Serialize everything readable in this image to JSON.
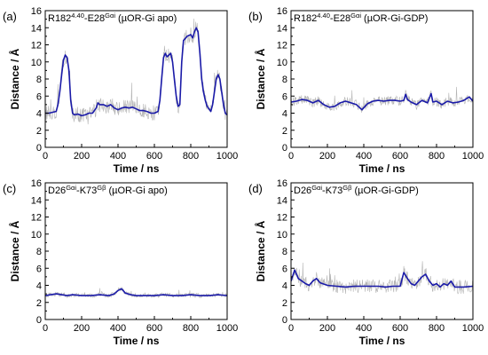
{
  "chart_data": [
    {
      "panel_label": "(a)",
      "title": {
        "res1": "R182",
        "res1_sup": "4.40",
        "mid": "-E28",
        "res2_sup": "Gαi",
        "tail": " (µOR-Gi apo)"
      },
      "type": "line",
      "xlabel": "Time / ns",
      "ylabel": "Distance / Å",
      "xlim": [
        0,
        1000
      ],
      "ylim": [
        0,
        16
      ],
      "xticks": [
        0,
        200,
        400,
        600,
        800,
        1000
      ],
      "yticks": [
        0,
        2,
        4,
        6,
        8,
        10,
        12,
        14,
        16
      ],
      "series": [
        {
          "style": "smoothed",
          "color": "#1a1aa8",
          "x": [
            0,
            20,
            40,
            60,
            70,
            80,
            90,
            100,
            110,
            120,
            130,
            140,
            150,
            160,
            180,
            200,
            220,
            240,
            260,
            280,
            290,
            300,
            320,
            340,
            360,
            380,
            400,
            420,
            440,
            460,
            480,
            500,
            520,
            540,
            560,
            580,
            600,
            620,
            630,
            640,
            650,
            660,
            670,
            680,
            690,
            700,
            710,
            720,
            730,
            740,
            750,
            760,
            780,
            800,
            810,
            820,
            830,
            840,
            850,
            860,
            870,
            880,
            890,
            900,
            910,
            920,
            930,
            940,
            950,
            960,
            970,
            980,
            990,
            1000
          ],
          "y": [
            4.0,
            4.0,
            4.1,
            4.2,
            5.0,
            6.5,
            8.5,
            10.2,
            10.8,
            10.5,
            9.0,
            5.5,
            4.0,
            3.8,
            3.9,
            3.7,
            3.8,
            4.0,
            4.0,
            4.6,
            5.2,
            5.0,
            5.0,
            4.8,
            5.0,
            4.6,
            4.4,
            4.6,
            4.7,
            4.6,
            4.7,
            4.5,
            4.3,
            4.3,
            4.2,
            4.0,
            4.0,
            4.2,
            5.5,
            8.0,
            10.5,
            11.0,
            10.6,
            10.8,
            11.0,
            10.0,
            8.0,
            6.0,
            4.8,
            5.0,
            10.0,
            12.5,
            13.0,
            13.2,
            12.8,
            13.5,
            14.0,
            13.5,
            11.0,
            8.0,
            6.5,
            5.5,
            4.8,
            4.5,
            4.2,
            5.0,
            6.5,
            8.0,
            8.5,
            8.0,
            6.5,
            5.0,
            4.0,
            3.8
          ]
        }
      ]
    },
    {
      "panel_label": "(b)",
      "title": {
        "res1": "R182",
        "res1_sup": "4.40",
        "mid": "-E28",
        "res2_sup": "Gαi",
        "tail": " (µOR-Gi-GDP)"
      },
      "type": "line",
      "xlabel": "Time / ns",
      "ylabel": "Distance / Å",
      "xlim": [
        0,
        1000
      ],
      "ylim": [
        0,
        16
      ],
      "xticks": [
        0,
        200,
        400,
        600,
        800,
        1000
      ],
      "yticks": [
        0,
        2,
        4,
        6,
        8,
        10,
        12,
        14,
        16
      ],
      "series": [
        {
          "style": "smoothed",
          "color": "#1a1aa8",
          "x": [
            0,
            30,
            60,
            90,
            120,
            150,
            180,
            210,
            240,
            270,
            300,
            330,
            360,
            390,
            420,
            450,
            480,
            510,
            540,
            570,
            600,
            620,
            630,
            640,
            660,
            690,
            720,
            750,
            770,
            780,
            800,
            830,
            860,
            890,
            920,
            950,
            980,
            1000
          ],
          "y": [
            5.3,
            5.4,
            5.6,
            5.5,
            5.2,
            5.5,
            5.0,
            4.7,
            4.8,
            5.2,
            5.4,
            5.2,
            5.0,
            4.4,
            5.1,
            5.4,
            5.5,
            5.4,
            5.5,
            5.5,
            5.4,
            5.5,
            6.2,
            5.6,
            5.3,
            5.0,
            5.5,
            5.2,
            6.3,
            5.3,
            5.4,
            5.0,
            5.4,
            5.2,
            5.3,
            5.5,
            5.9,
            5.4
          ]
        }
      ]
    },
    {
      "panel_label": "(c)",
      "title": {
        "res1": "D26",
        "res1_sup": "Gαi",
        "mid": "-K73",
        "res2_sup": "Gβ",
        "tail": " (µOR-Gi apo)"
      },
      "type": "line",
      "xlabel": "Time / ns",
      "ylabel": "Distance / Å",
      "xlim": [
        0,
        1000
      ],
      "ylim": [
        0,
        16
      ],
      "xticks": [
        0,
        200,
        400,
        600,
        800,
        1000
      ],
      "yticks": [
        0,
        2,
        4,
        6,
        8,
        10,
        12,
        14,
        16
      ],
      "series": [
        {
          "style": "smoothed",
          "color": "#1a1aa8",
          "x": [
            0,
            30,
            60,
            90,
            120,
            150,
            200,
            250,
            300,
            350,
            380,
            400,
            420,
            440,
            470,
            500,
            550,
            600,
            650,
            700,
            750,
            800,
            850,
            900,
            950,
            1000
          ],
          "y": [
            2.8,
            2.9,
            3.0,
            2.9,
            2.8,
            2.9,
            2.8,
            2.8,
            2.9,
            2.8,
            3.0,
            3.4,
            3.6,
            3.1,
            2.9,
            2.8,
            2.8,
            2.8,
            2.9,
            2.8,
            2.8,
            2.9,
            2.8,
            2.8,
            2.9,
            2.8
          ]
        }
      ]
    },
    {
      "panel_label": "(d)",
      "title": {
        "res1": "D26",
        "res1_sup": "Gαi",
        "mid": "-K73",
        "res2_sup": "Gβ",
        "tail": " (µOR-Gi-GDP)"
      },
      "type": "line",
      "xlabel": "Time / ns",
      "ylabel": "Distance / Å",
      "xlim": [
        0,
        1000
      ],
      "ylim": [
        0,
        16
      ],
      "xticks": [
        0,
        200,
        400,
        600,
        800,
        1000
      ],
      "yticks": [
        0,
        2,
        4,
        6,
        8,
        10,
        12,
        14,
        16
      ],
      "series": [
        {
          "style": "smoothed",
          "color": "#1a1aa8",
          "x": [
            0,
            20,
            40,
            60,
            80,
            100,
            120,
            140,
            160,
            200,
            250,
            300,
            350,
            400,
            440,
            480,
            520,
            560,
            600,
            620,
            640,
            660,
            680,
            700,
            720,
            740,
            760,
            780,
            800,
            820,
            840,
            860,
            880,
            900,
            950,
            1000
          ],
          "y": [
            4.5,
            5.8,
            4.8,
            4.5,
            4.2,
            4.0,
            4.5,
            4.8,
            4.3,
            4.0,
            3.9,
            3.8,
            3.9,
            3.9,
            3.9,
            3.9,
            3.8,
            3.9,
            3.9,
            5.5,
            4.8,
            4.2,
            4.0,
            4.5,
            5.0,
            5.3,
            4.5,
            4.0,
            4.2,
            3.8,
            4.2,
            4.0,
            4.5,
            3.8,
            3.8,
            3.9
          ]
        }
      ]
    }
  ]
}
